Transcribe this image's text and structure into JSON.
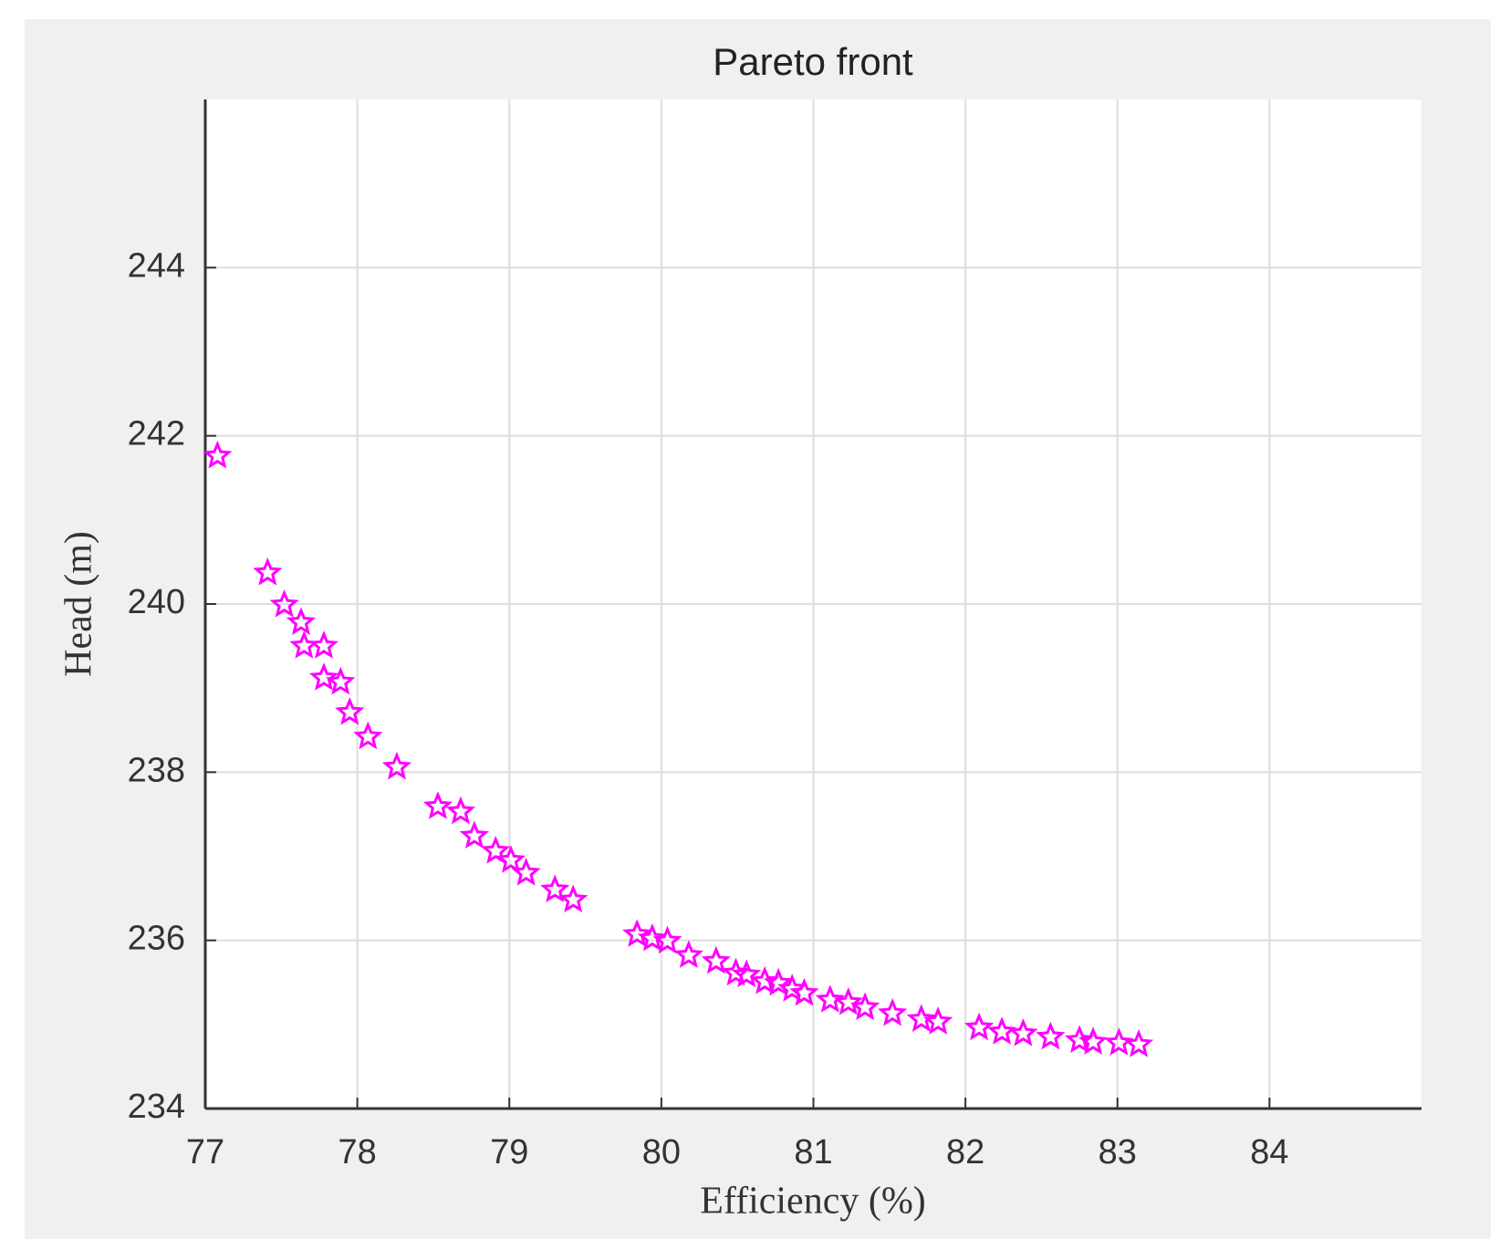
{
  "chart_data": {
    "type": "scatter",
    "title": "Pareto front",
    "x_label": "Efficiency (%)",
    "y_label": "Head (m)",
    "x": [
      77.08,
      77.41,
      77.52,
      77.63,
      77.65,
      77.78,
      77.78,
      77.89,
      77.95,
      78.07,
      78.26,
      78.53,
      78.68,
      78.77,
      78.91,
      79.01,
      79.11,
      79.3,
      79.42,
      79.84,
      79.94,
      80.04,
      80.18,
      80.36,
      80.49,
      80.56,
      80.68,
      80.77,
      80.86,
      80.94,
      81.11,
      81.23,
      81.34,
      81.52,
      81.71,
      81.82,
      82.09,
      82.24,
      82.38,
      82.56,
      82.75,
      82.84,
      83.01,
      83.14
    ],
    "values": [
      241.76,
      240.37,
      239.99,
      239.78,
      239.5,
      239.5,
      239.12,
      239.07,
      238.71,
      238.42,
      238.06,
      237.59,
      237.53,
      237.24,
      237.06,
      236.95,
      236.8,
      236.6,
      236.48,
      236.07,
      236.02,
      235.99,
      235.82,
      235.75,
      235.61,
      235.59,
      235.51,
      235.49,
      235.42,
      235.37,
      235.29,
      235.26,
      235.2,
      235.13,
      235.06,
      235.03,
      234.96,
      234.91,
      234.89,
      234.85,
      234.81,
      234.79,
      234.78,
      234.76
    ],
    "color": "#ff00ff",
    "marker": "star",
    "xlim": [
      77,
      85
    ],
    "xticks": [
      77,
      78,
      79,
      80,
      81,
      82,
      83,
      84
    ],
    "ylim": [
      234,
      246
    ],
    "yticks": [
      234,
      236,
      238,
      240,
      242,
      244
    ],
    "grid": true
  }
}
